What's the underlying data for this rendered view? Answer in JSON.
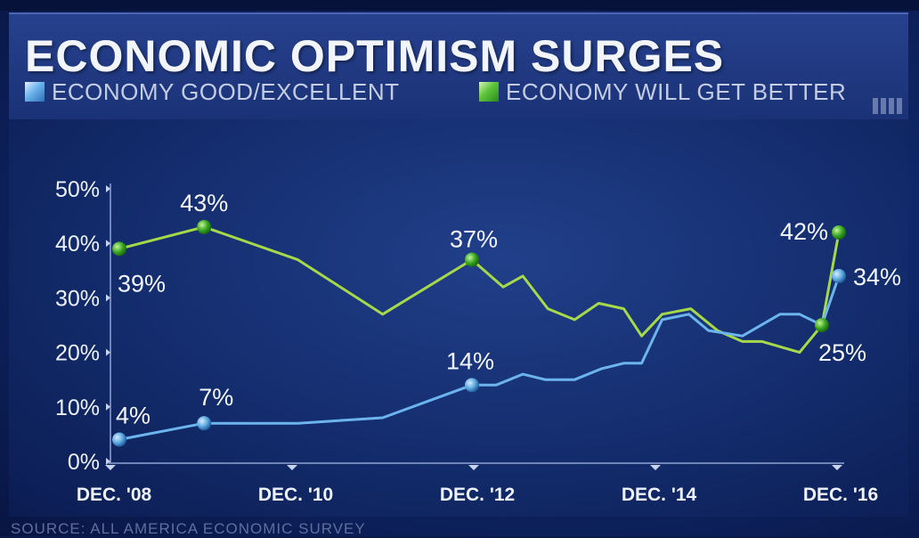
{
  "header": {
    "title": "ECONOMIC OPTIMISM SURGES"
  },
  "legend": [
    {
      "label": "ECONOMY GOOD/EXCELLENT",
      "color": "#6cb4ee"
    },
    {
      "label": "ECONOMY WILL GET BETTER",
      "color": "#5cc43a"
    }
  ],
  "source": "SOURCE: ALL AMERICA ECONOMIC SURVEY",
  "colors": {
    "blue_line": "#6cb4ee",
    "green_line": "#a6d94a",
    "green_marker": "#3aa823",
    "blue_marker": "#5ca8e0",
    "background": "#10286a"
  },
  "chart_data": {
    "type": "line",
    "title": "ECONOMIC OPTIMISM SURGES",
    "xlabel": "",
    "ylabel": "",
    "xlim": [
      2008.75,
      2016.92
    ],
    "ylim": [
      0,
      50
    ],
    "grid": false,
    "legend_position": "top",
    "x_ticks": [
      {
        "x": 2008.92,
        "label": "DEC. '08"
      },
      {
        "x": 2010.92,
        "label": "DEC. '10"
      },
      {
        "x": 2012.92,
        "label": "DEC. '12"
      },
      {
        "x": 2014.92,
        "label": "DEC. '14"
      },
      {
        "x": 2016.92,
        "label": "DEC. '16"
      }
    ],
    "y_ticks": [
      {
        "y": 0,
        "label": "0%"
      },
      {
        "y": 10,
        "label": "10%"
      },
      {
        "y": 20,
        "label": "20%"
      },
      {
        "y": 30,
        "label": "30%"
      },
      {
        "y": 40,
        "label": "40%"
      },
      {
        "y": 50,
        "label": "50%"
      }
    ],
    "series": [
      {
        "name": "ECONOMY GOOD/EXCELLENT",
        "color": "#6cb4ee",
        "points": [
          {
            "x": 2009.0,
            "y": 4
          },
          {
            "x": 2009.95,
            "y": 7
          },
          {
            "x": 2011.0,
            "y": 7
          },
          {
            "x": 2011.95,
            "y": 8
          },
          {
            "x": 2012.95,
            "y": 14
          },
          {
            "x": 2013.22,
            "y": 14
          },
          {
            "x": 2013.52,
            "y": 16
          },
          {
            "x": 2013.77,
            "y": 15
          },
          {
            "x": 2014.1,
            "y": 15
          },
          {
            "x": 2014.4,
            "y": 17
          },
          {
            "x": 2014.65,
            "y": 18
          },
          {
            "x": 2014.85,
            "y": 18
          },
          {
            "x": 2015.08,
            "y": 26
          },
          {
            "x": 2015.38,
            "y": 27
          },
          {
            "x": 2015.6,
            "y": 24
          },
          {
            "x": 2015.98,
            "y": 23
          },
          {
            "x": 2016.4,
            "y": 27
          },
          {
            "x": 2016.62,
            "y": 27
          },
          {
            "x": 2016.87,
            "y": 25
          },
          {
            "x": 2017.06,
            "y": 34
          }
        ],
        "labels": [
          {
            "index": 0,
            "text": "4%"
          },
          {
            "index": 1,
            "text": "7%"
          },
          {
            "index": 4,
            "text": "14%"
          },
          {
            "index": 19,
            "text": "34%"
          }
        ]
      },
      {
        "name": "ECONOMY WILL GET BETTER",
        "color": "#a6d94a",
        "points": [
          {
            "x": 2009.0,
            "y": 39
          },
          {
            "x": 2009.95,
            "y": 43
          },
          {
            "x": 2011.0,
            "y": 37
          },
          {
            "x": 2011.95,
            "y": 27
          },
          {
            "x": 2012.95,
            "y": 37
          },
          {
            "x": 2013.3,
            "y": 32
          },
          {
            "x": 2013.52,
            "y": 34
          },
          {
            "x": 2013.8,
            "y": 28
          },
          {
            "x": 2014.1,
            "y": 26
          },
          {
            "x": 2014.37,
            "y": 29
          },
          {
            "x": 2014.65,
            "y": 28
          },
          {
            "x": 2014.85,
            "y": 23
          },
          {
            "x": 2015.08,
            "y": 27
          },
          {
            "x": 2015.4,
            "y": 28
          },
          {
            "x": 2015.7,
            "y": 24
          },
          {
            "x": 2015.98,
            "y": 22
          },
          {
            "x": 2016.2,
            "y": 22
          },
          {
            "x": 2016.62,
            "y": 20
          },
          {
            "x": 2016.87,
            "y": 25
          },
          {
            "x": 2017.06,
            "y": 42
          }
        ],
        "labels": [
          {
            "index": 0,
            "text": "39%"
          },
          {
            "index": 1,
            "text": "43%"
          },
          {
            "index": 4,
            "text": "37%"
          },
          {
            "index": 18,
            "text": "25%"
          },
          {
            "index": 19,
            "text": "42%"
          }
        ]
      }
    ]
  }
}
